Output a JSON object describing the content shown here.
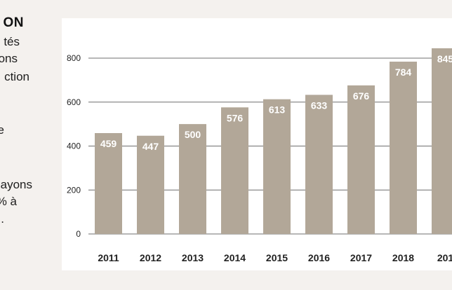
{
  "sidebar": {
    "title": "ON",
    "lines": [
      "tés",
      "ons",
      "ction",
      "e",
      "ayons",
      "% à",
      "."
    ]
  },
  "colors": {
    "bar": "#b2a798",
    "bar_label": "#ffffff",
    "gridline": "#6f6f6f",
    "tick_text": "#222222",
    "panel_background": "#ffffff",
    "page_background": "#f4f1ee"
  },
  "chart_data": {
    "type": "bar",
    "categories": [
      "2011",
      "2012",
      "2013",
      "2014",
      "2015",
      "2016",
      "2017",
      "2018",
      "201"
    ],
    "values": [
      459,
      447,
      500,
      576,
      613,
      633,
      676,
      784,
      845
    ],
    "value_labels": [
      "459",
      "447",
      "500",
      "576",
      "613",
      "633",
      "676",
      "784",
      "845"
    ],
    "yticks": [
      0,
      200,
      400,
      600,
      800
    ],
    "ylim": [
      0,
      800
    ],
    "grid": true,
    "legend": "none",
    "title": "",
    "xlabel": "",
    "ylabel": ""
  }
}
